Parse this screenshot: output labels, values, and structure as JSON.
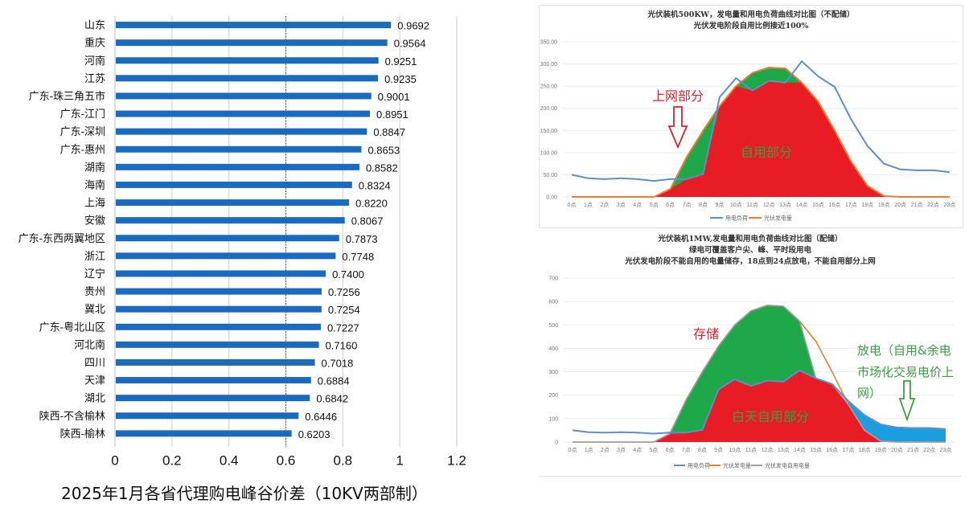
{
  "chart_data": [
    {
      "type": "bar",
      "orientation": "horizontal",
      "title": "2025年1月各省代理购电峰谷价差（10KV两部制）",
      "xlabel": "",
      "ylabel": "",
      "xlim": [
        0,
        1.2
      ],
      "xticks": [
        "0",
        "0.2",
        "0.4",
        "0.6",
        "0.8",
        "1",
        "1.2"
      ],
      "grid": true,
      "reference_line": {
        "value": 0.6,
        "color": "#e0202a",
        "style": "dashed"
      },
      "bar_color": "#1a6bbf",
      "categories": [
        "山东",
        "重庆",
        "河南",
        "江苏",
        "广东-珠三角五市",
        "广东-江门",
        "广东-深圳",
        "广东-惠州",
        "湖南",
        "海南",
        "上海",
        "安徽",
        "广东-东西两翼地区",
        "浙江",
        "辽宁",
        "贵州",
        "冀北",
        "广东-粤北山区",
        "河北南",
        "四川",
        "天津",
        "湖北",
        "陕西-不含榆林",
        "陕西-榆林"
      ],
      "values": [
        0.9692,
        0.9564,
        0.9251,
        0.9235,
        0.9001,
        0.8951,
        0.8847,
        0.8653,
        0.8582,
        0.8324,
        0.822,
        0.8067,
        0.7873,
        0.7748,
        0.74,
        0.7256,
        0.7254,
        0.7227,
        0.716,
        0.7018,
        0.6884,
        0.6842,
        0.6446,
        0.6203
      ],
      "value_labels": [
        "0.9692",
        "0.9564",
        "0.9251",
        "0.9235",
        "0.9001",
        "0.8951",
        "0.8847",
        "0.8653",
        "0.8582",
        "0.8324",
        "0.8220",
        "0.8067",
        "0.7873",
        "0.7748",
        "0.7400",
        "0.7256",
        "0.7254",
        "0.7227",
        "0.7160",
        "0.7018",
        "0.6884",
        "0.6842",
        "0.6446",
        "0.6203"
      ]
    },
    {
      "type": "area",
      "title_lines": [
        "光伏装机500KW，发电量和用电负荷曲线对比图（不配储）",
        "光伏发电阶段自用比例接近100%"
      ],
      "x": [
        "0点",
        "1点",
        "2点",
        "3点",
        "4点",
        "5点",
        "6点",
        "7点",
        "8点",
        "9点",
        "10点",
        "11点",
        "12点",
        "13点",
        "14点",
        "15点",
        "16点",
        "17点",
        "18点",
        "19点",
        "20点",
        "21点",
        "22点",
        "23点"
      ],
      "ylim": [
        0,
        350
      ],
      "yticks": [
        "0.00",
        "50.00",
        "100.00",
        "150.00",
        "200.00",
        "250.00",
        "300.00",
        "350.00"
      ],
      "series": [
        {
          "name": "用电负荷",
          "color": "#5b8fc9",
          "values": [
            50,
            42,
            40,
            42,
            40,
            36,
            40,
            40,
            52,
            225,
            268,
            240,
            262,
            258,
            306,
            272,
            248,
            175,
            115,
            75,
            62,
            60,
            60,
            56
          ]
        },
        {
          "name": "光伏发电量",
          "color": "#ed7d31",
          "values": [
            0,
            0,
            0,
            0,
            0,
            0,
            18,
            90,
            150,
            205,
            250,
            280,
            292,
            290,
            258,
            215,
            150,
            80,
            25,
            2,
            0,
            0,
            0,
            0
          ]
        }
      ],
      "fill_colors": {
        "self_use": "#e81c24",
        "grid_export": "#1fa84a"
      },
      "annotations": [
        "上网部分",
        "自用部分"
      ],
      "legend": "bottom"
    },
    {
      "type": "area",
      "title_lines": [
        "光伏装机1MW,发电量和用电负荷曲线对比图（配储）",
        "绿电可覆盖客户尖、峰、平时段用电",
        "光伏发电阶段不能自用的电量储存，18点到24点放电，不能自用部分上网"
      ],
      "x": [
        "0点",
        "1点",
        "2点",
        "3点",
        "4点",
        "5点",
        "6点",
        "7点",
        "8点",
        "9点",
        "10点",
        "11点",
        "12点",
        "13点",
        "14点",
        "15点",
        "16点",
        "17点",
        "18点",
        "19点",
        "20点",
        "21点",
        "22点",
        "23点"
      ],
      "ylim": [
        0,
        700
      ],
      "yticks": [
        "0",
        "100",
        "200",
        "300",
        "400",
        "500",
        "600",
        "700"
      ],
      "series": [
        {
          "name": "用电负荷",
          "color": "#5b8fc9",
          "values": [
            50,
            42,
            40,
            42,
            40,
            36,
            40,
            40,
            52,
            225,
            268,
            240,
            262,
            258,
            306,
            272,
            248,
            175,
            115,
            75,
            62,
            60,
            60,
            56
          ]
        },
        {
          "name": "光伏发电量",
          "color": "#ed7d31",
          "values": [
            0,
            0,
            0,
            0,
            0,
            0,
            36,
            180,
            300,
            410,
            500,
            560,
            584,
            580,
            516,
            430,
            300,
            160,
            50,
            4,
            0,
            0,
            0,
            0
          ]
        },
        {
          "name": "光伏发电自用电量",
          "color": "#a0a0a0",
          "values": [
            0,
            0,
            0,
            0,
            0,
            0,
            36,
            180,
            300,
            410,
            500,
            560,
            584,
            580,
            516,
            272,
            248,
            160,
            50,
            4,
            0,
            0,
            0,
            0
          ]
        }
      ],
      "fill_colors": {
        "self_use": "#e81c24",
        "storage": "#1fa84a",
        "discharge": "#1b9ee0"
      },
      "annotations": [
        "存储",
        "白天自用部分",
        "放电（自用&余电",
        "市场化交易电价上",
        "网）"
      ],
      "legend": "bottom"
    }
  ]
}
